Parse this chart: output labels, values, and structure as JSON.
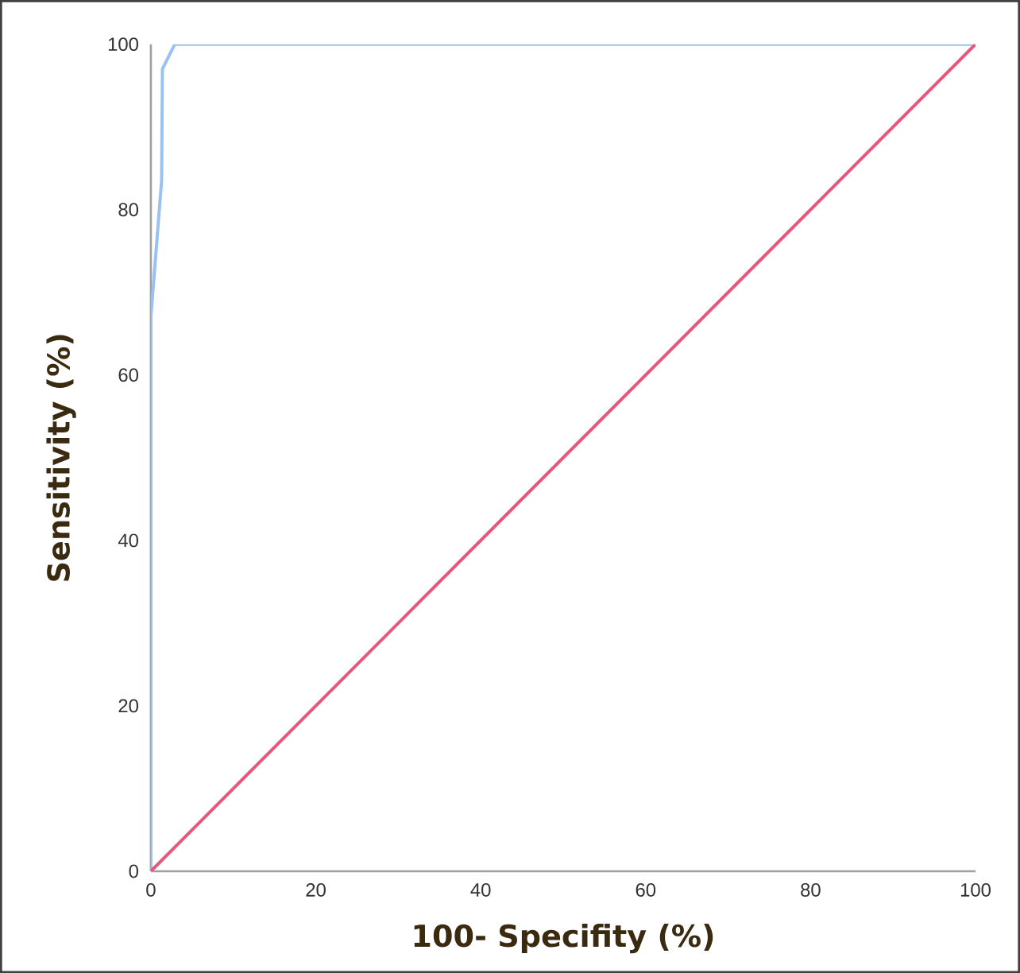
{
  "chart_data": {
    "type": "line",
    "xlabel": "100- Specifity (%)",
    "ylabel": "Sensitivity     (%)",
    "xlim": [
      0,
      100
    ],
    "ylim": [
      0,
      100
    ],
    "xticks": [
      0,
      20,
      40,
      60,
      80,
      100
    ],
    "yticks": [
      0,
      20,
      40,
      60,
      80,
      100
    ],
    "marker": "none",
    "line_style": "solid",
    "series": [
      {
        "color": "#99c2f0",
        "x": [
          0,
          0,
          1.3,
          1.4,
          2.9,
          100
        ],
        "values": [
          0,
          67,
          83.5,
          97,
          100,
          100
        ]
      },
      {
        "color": "#e8567a",
        "x": [
          0,
          100
        ],
        "values": [
          0,
          100
        ]
      }
    ]
  }
}
